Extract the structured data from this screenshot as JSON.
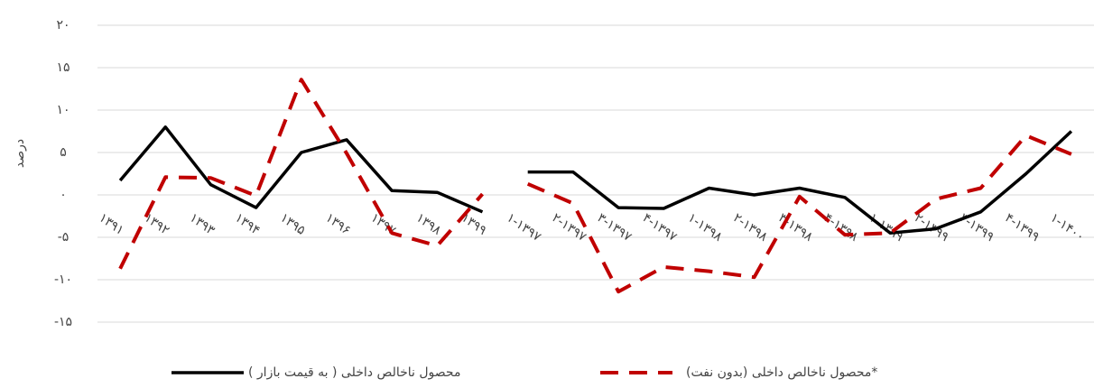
{
  "chart_data": {
    "type": "line",
    "y_label": "درصد",
    "categories": [
      [
        "۱۳۹۱",
        "۱۳۹۲",
        "۱۳۹۳",
        "۱۳۹۴",
        "۱۳۹۵",
        "۱۳۹۶",
        "۱۳۹۷",
        "۱۳۹۸",
        "۱۳۹۹"
      ],
      [
        "۱-۱۳۹۷",
        "۲-۱۳۹۷",
        "۳-۱۳۹۷",
        "۴-۱۳۹۷",
        "۱-۱۳۹۸",
        "۲-۱۳۹۸",
        "۳-۱۳۹۸",
        "۴-۱۳۹۸",
        "۱-۱۳۹۹",
        "۲-۱۳۹۹",
        "۳-۱۳۹۹",
        "۴-۱۳۹۹",
        "۱-۱۴۰۰"
      ]
    ],
    "series": [
      {
        "name": "محصول ناخالص داخلی ( به قیمت بازار )",
        "color": "#000000",
        "dashed": false,
        "values": [
          [
            1.7,
            8,
            1.2,
            -1.5,
            5,
            6.5,
            0.5,
            0.3,
            -2
          ],
          [
            2.7,
            2.7,
            -1.5,
            -1.6,
            0.8,
            0,
            0.8,
            -0.3,
            -4.5,
            -4,
            -2,
            2.5,
            7.5
          ]
        ]
      },
      {
        "name": "محصول ناخالص داخلی (بدون نفت)*",
        "color": "#c00000",
        "dashed": true,
        "values": [
          [
            -8.7,
            2.1,
            2,
            -0.1,
            13.6,
            4.9,
            -4.5,
            -6,
            0.1
          ],
          [
            1.3,
            -1,
            -11.4,
            -8.5,
            -9,
            -9.7,
            -0.2,
            -4.7,
            -4.5,
            -0.5,
            0.8,
            7,
            4.8
          ]
        ]
      }
    ],
    "ylim": [
      -15,
      20
    ],
    "yticks": [
      {
        "value": 20,
        "label": "۲۰"
      },
      {
        "value": 15,
        "label": "۱۵"
      },
      {
        "value": 10,
        "label": "۱۰"
      },
      {
        "value": 5,
        "label": "۵"
      },
      {
        "value": 0,
        "label": "۰"
      },
      {
        "value": -5,
        "label": "-۵"
      },
      {
        "value": -10,
        "label": "-۱۰"
      },
      {
        "value": -15,
        "label": "-۱۵"
      }
    ],
    "grid": true
  }
}
